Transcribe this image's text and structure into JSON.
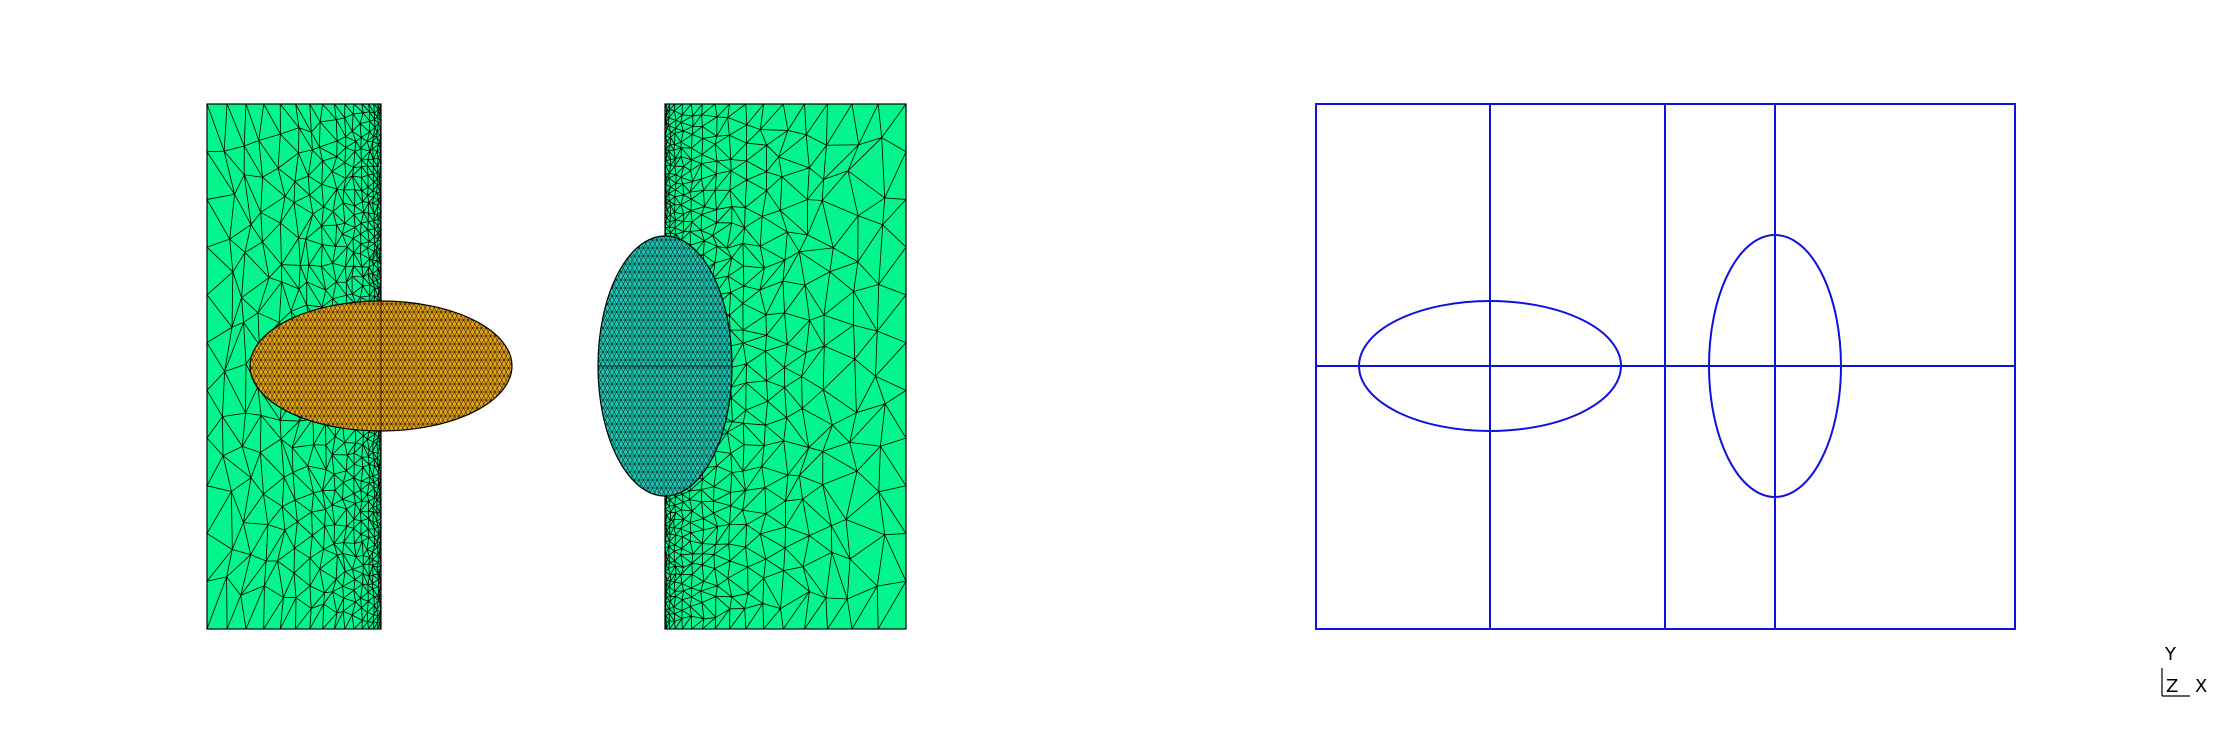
{
  "colors": {
    "background": "#ffffff",
    "mesh_fill_green": "#05f58d",
    "mesh_fill_orange": "#e7a518",
    "mesh_fill_teal": "#1ec9b6",
    "mesh_lines": "#000000",
    "geometry_lines": "#1010e0",
    "axis_triad": "#000000"
  },
  "views": {
    "mesh_view": {
      "shaded": true,
      "parts": [
        "left-block",
        "orange-ellipse",
        "right-block",
        "teal-ellipse"
      ]
    },
    "geometry_view": {
      "wireframe": true
    }
  },
  "axis_triad": {
    "y_label": "Y",
    "z_label": "Z",
    "x_label": "X"
  }
}
